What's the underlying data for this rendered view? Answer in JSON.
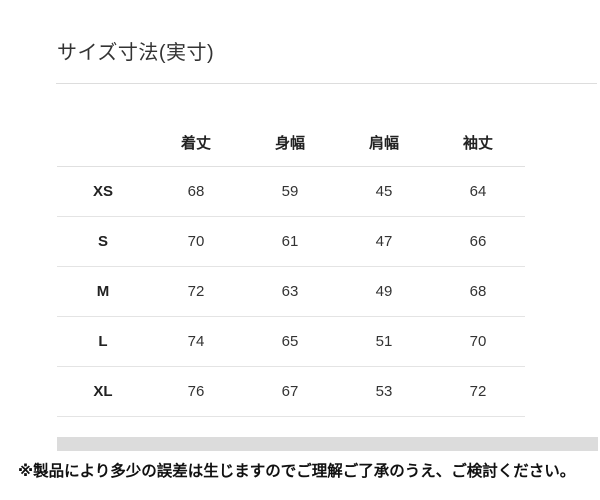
{
  "title": "サイズ寸法(実寸)",
  "note": "※製品により多少の誤差は生じますのでご理解ご了承のうえ、ご検討ください。",
  "chart_data": {
    "type": "table",
    "title": "サイズ寸法(実寸)",
    "columns": [
      "着丈",
      "身幅",
      "肩幅",
      "袖丈"
    ],
    "rows": [
      {
        "size": "XS",
        "values": [
          "68",
          "59",
          "45",
          "64"
        ]
      },
      {
        "size": "S",
        "values": [
          "70",
          "61",
          "47",
          "66"
        ]
      },
      {
        "size": "M",
        "values": [
          "72",
          "63",
          "49",
          "68"
        ]
      },
      {
        "size": "L",
        "values": [
          "74",
          "65",
          "51",
          "70"
        ]
      },
      {
        "size": "XL",
        "values": [
          "76",
          "67",
          "53",
          "72"
        ]
      }
    ],
    "footnote": "※製品により多少の誤差は生じますのでご理解ご了承のうえ、ご検討ください。"
  },
  "colors": {
    "background": "#ffffff",
    "title_text": "#333333",
    "table_text": "#333333",
    "header_text": "#222222",
    "divider": "#e4e4e4",
    "title_divider": "#dddddd",
    "gray_bar": "#dcdcdc",
    "note_text": "#111111"
  }
}
